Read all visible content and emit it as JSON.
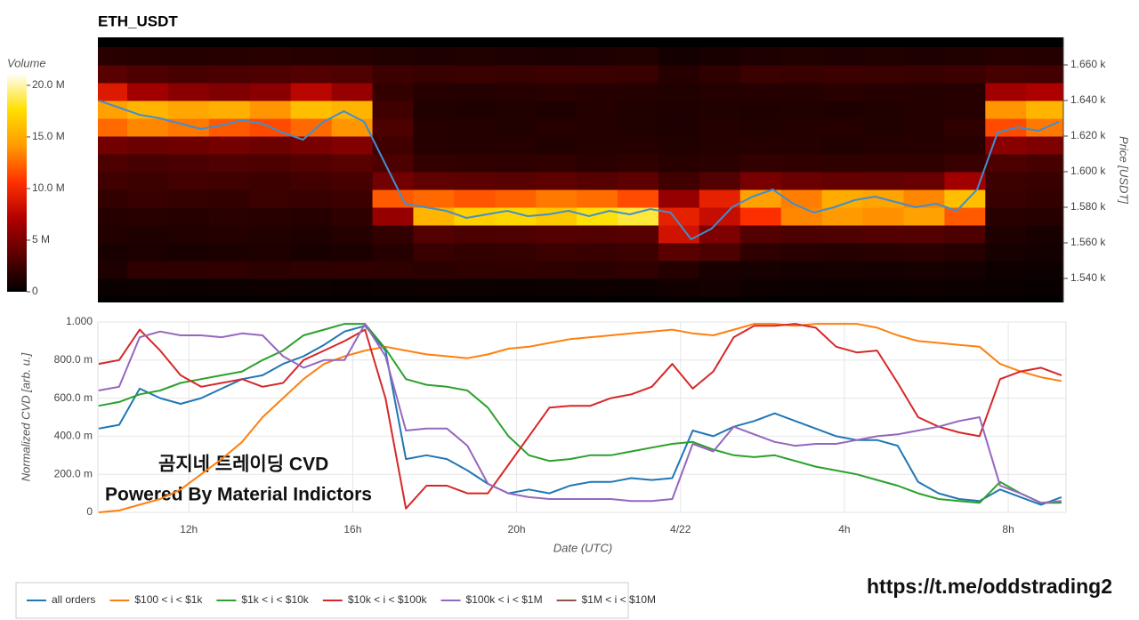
{
  "chart_data": [
    {
      "type": "heatmap",
      "title": "ETH_USDT",
      "ylabel": "Price [USDT]",
      "xlim": [
        9.78,
        33.41
      ],
      "ylim": [
        1526.5,
        1675.5
      ],
      "yticks": [
        {
          "value": 1540,
          "label": "1.540 k"
        },
        {
          "value": 1560,
          "label": "1.560 k"
        },
        {
          "value": 1580,
          "label": "1.580 k"
        },
        {
          "value": 1600,
          "label": "1.600 k"
        },
        {
          "value": 1620,
          "label": "1.620 k"
        },
        {
          "value": 1640,
          "label": "1.640 k"
        },
        {
          "value": 1660,
          "label": "1.660 k"
        }
      ],
      "x": [
        10,
        11,
        12,
        13,
        14,
        15,
        16,
        17,
        18,
        19,
        20,
        21,
        22,
        23,
        24,
        25,
        26,
        27,
        28,
        29,
        30,
        31,
        32,
        33
      ],
      "y": [
        1535,
        1545,
        1555,
        1565,
        1575,
        1585,
        1595,
        1605,
        1615,
        1625,
        1635,
        1645,
        1655,
        1665
      ],
      "z": [
        [
          0.4,
          0.5,
          0.4,
          0.5,
          0.6,
          0.5,
          0.4,
          0.5,
          0.6,
          0.5,
          0.4,
          0.5,
          0.6,
          0.5,
          0.7,
          0.8,
          0.6,
          0.5,
          0.4,
          0.5,
          0.6,
          0.5,
          0.4,
          0.3
        ],
        [
          1.2,
          1.8,
          1.8,
          1.9,
          1.7,
          1.8,
          1.9,
          1.8,
          1.7,
          1.8,
          1.9,
          1.8,
          1.7,
          1.9,
          1.4,
          1.0,
          0.9,
          0.8,
          0.9,
          0.8,
          0.9,
          0.8,
          0.6,
          0.5
        ],
        [
          1.0,
          1.1,
          1.0,
          1.1,
          1.2,
          1.0,
          1.1,
          1.5,
          2.2,
          2.0,
          2.1,
          2.3,
          2.2,
          2.4,
          3.5,
          3.0,
          1.8,
          1.6,
          1.5,
          1.6,
          1.7,
          1.5,
          0.9,
          0.8
        ],
        [
          1.3,
          1.2,
          1.3,
          1.4,
          1.3,
          1.2,
          1.4,
          2.0,
          3.2,
          3.0,
          3.1,
          3.3,
          3.2,
          3.4,
          8.5,
          5.0,
          3.2,
          3.0,
          3.1,
          3.3,
          3.2,
          3.0,
          1.2,
          1.0
        ],
        [
          1.5,
          1.6,
          1.5,
          1.7,
          1.6,
          1.5,
          1.8,
          6.0,
          15.5,
          16.8,
          17.2,
          16.5,
          17.8,
          18.5,
          9.5,
          8.0,
          10.5,
          13.5,
          14.2,
          13.8,
          14.5,
          12.0,
          1.6,
          1.5
        ],
        [
          2.0,
          2.2,
          2.1,
          2.0,
          2.3,
          2.2,
          2.4,
          12.0,
          12.5,
          11.8,
          12.2,
          13.0,
          12.6,
          11.5,
          6.0,
          9.5,
          14.5,
          13.2,
          15.0,
          14.6,
          13.5,
          16.0,
          2.2,
          2.0
        ],
        [
          2.5,
          2.4,
          2.6,
          2.5,
          2.4,
          2.6,
          2.8,
          4.5,
          3.8,
          3.6,
          3.5,
          3.7,
          3.4,
          3.6,
          2.5,
          3.2,
          4.8,
          4.2,
          4.0,
          3.9,
          4.1,
          6.5,
          2.4,
          2.2
        ],
        [
          3.0,
          2.8,
          2.9,
          3.1,
          3.0,
          3.2,
          3.5,
          3.0,
          2.0,
          1.9,
          1.8,
          1.9,
          1.7,
          1.8,
          1.6,
          1.7,
          2.0,
          1.9,
          1.8,
          1.9,
          1.8,
          2.2,
          3.0,
          2.8
        ],
        [
          4.5,
          4.2,
          4.4,
          4.6,
          4.3,
          4.8,
          5.2,
          2.5,
          1.5,
          1.4,
          1.5,
          1.3,
          1.4,
          1.5,
          1.3,
          1.4,
          1.5,
          1.4,
          1.3,
          1.4,
          1.5,
          1.6,
          5.5,
          5.0
        ],
        [
          12.5,
          13.5,
          13.0,
          12.0,
          11.5,
          12.5,
          14.0,
          3.0,
          1.5,
          1.4,
          1.3,
          1.5,
          1.4,
          1.3,
          1.2,
          1.4,
          1.3,
          1.4,
          1.5,
          1.3,
          1.4,
          1.8,
          11.5,
          13.0
        ],
        [
          14.5,
          15.5,
          14.8,
          15.2,
          14.0,
          16.0,
          15.5,
          2.5,
          1.3,
          1.2,
          1.3,
          1.2,
          1.4,
          1.3,
          1.2,
          1.3,
          1.2,
          1.3,
          1.2,
          1.3,
          1.4,
          1.5,
          14.0,
          15.5
        ],
        [
          9.0,
          6.5,
          5.5,
          5.0,
          5.5,
          7.5,
          6.0,
          2.0,
          1.5,
          1.4,
          1.5,
          1.6,
          1.5,
          1.4,
          1.3,
          1.4,
          1.5,
          1.4,
          1.6,
          1.5,
          1.4,
          1.5,
          6.5,
          7.0
        ],
        [
          3.5,
          3.0,
          2.8,
          2.9,
          3.0,
          3.2,
          3.1,
          2.4,
          2.2,
          2.3,
          2.2,
          2.4,
          2.3,
          2.2,
          1.5,
          1.8,
          2.3,
          2.2,
          2.4,
          2.3,
          2.2,
          2.4,
          2.8,
          2.6
        ],
        [
          1.6,
          1.5,
          1.4,
          1.5,
          1.6,
          1.5,
          1.4,
          1.3,
          1.2,
          1.3,
          1.2,
          1.1,
          1.2,
          1.3,
          0.8,
          1.0,
          1.2,
          1.3,
          1.2,
          1.3,
          1.2,
          1.3,
          1.5,
          1.4
        ]
      ],
      "colormap": [
        "#000000",
        "#5a0000",
        "#b00000",
        "#ff3000",
        "#ff9a00",
        "#ffe000",
        "#ffffff"
      ],
      "colorbar": {
        "title": "Volume",
        "lim": [
          0,
          21.2
        ],
        "ticks": [
          0,
          {
            "value": 5,
            "label": "5 M"
          },
          {
            "value": 10,
            "label": "10.0 M"
          },
          {
            "value": 15,
            "label": "15.0 M"
          },
          {
            "value": 20,
            "label": "20.0 M"
          }
        ]
      },
      "line": {
        "color": "#3f8fcf",
        "x": [
          9.8,
          10.3,
          10.8,
          11.3,
          11.8,
          12.3,
          12.8,
          13.3,
          13.8,
          14.3,
          14.8,
          15.3,
          15.8,
          16.3,
          16.8,
          17.3,
          17.8,
          18.3,
          18.8,
          19.3,
          19.8,
          20.3,
          20.8,
          21.3,
          21.8,
          22.3,
          22.8,
          23.3,
          23.8,
          24.3,
          24.8,
          25.3,
          25.8,
          26.3,
          26.8,
          27.3,
          27.8,
          28.3,
          28.8,
          29.3,
          29.8,
          30.3,
          30.8,
          31.3,
          31.8,
          32.3,
          32.8,
          33.3
        ],
        "values": [
          1640,
          1636,
          1632,
          1630,
          1627,
          1624,
          1626,
          1629,
          1627,
          1622,
          1618,
          1628,
          1634,
          1628,
          1605,
          1582,
          1580,
          1578,
          1574,
          1576,
          1578,
          1575,
          1576,
          1578,
          1575,
          1578,
          1576,
          1579,
          1577,
          1562,
          1568,
          1580,
          1586,
          1590,
          1582,
          1577,
          1580,
          1584,
          1586,
          1583,
          1580,
          1582,
          1578,
          1590,
          1622,
          1625,
          1623,
          1628
        ]
      }
    },
    {
      "type": "line",
      "xlabel": "Date (UTC)",
      "ylabel": "Normalized CVD [arb. u.]",
      "grid": true,
      "xlim": [
        9.78,
        33.41
      ],
      "ylim": [
        0,
        1
      ],
      "xticks": [
        {
          "value": 12,
          "label": "12h"
        },
        {
          "value": 16,
          "label": "16h"
        },
        {
          "value": 20,
          "label": "20h"
        },
        {
          "value": 24,
          "label": "4/22"
        },
        {
          "value": 28,
          "label": "4h"
        },
        {
          "value": 32,
          "label": "8h"
        }
      ],
      "yticks": [
        0,
        {
          "value": 0.2,
          "label": "200.0 m"
        },
        {
          "value": 0.4,
          "label": "400.0 m"
        },
        {
          "value": 0.6,
          "label": "600.0 m"
        },
        {
          "value": 0.8,
          "label": "800.0 m"
        },
        {
          "value": 1,
          "label": "1.000"
        }
      ],
      "x": [
        9.8,
        10.3,
        10.8,
        11.3,
        11.8,
        12.3,
        12.8,
        13.3,
        13.8,
        14.3,
        14.8,
        15.3,
        15.8,
        16.3,
        16.8,
        17.3,
        17.8,
        18.3,
        18.8,
        19.3,
        19.8,
        20.3,
        20.8,
        21.3,
        21.8,
        22.3,
        22.8,
        23.3,
        23.8,
        24.3,
        24.8,
        25.3,
        25.8,
        26.3,
        26.8,
        27.3,
        27.8,
        28.3,
        28.8,
        29.3,
        29.8,
        30.3,
        30.8,
        31.3,
        31.8,
        32.3,
        32.8,
        33.3
      ],
      "series": [
        {
          "name": "all orders",
          "color": "#1f77b4",
          "values": [
            0.44,
            0.46,
            0.65,
            0.6,
            0.57,
            0.6,
            0.65,
            0.7,
            0.72,
            0.78,
            0.82,
            0.88,
            0.95,
            0.98,
            0.85,
            0.28,
            0.3,
            0.28,
            0.22,
            0.15,
            0.1,
            0.12,
            0.1,
            0.14,
            0.16,
            0.16,
            0.18,
            0.17,
            0.18,
            0.43,
            0.4,
            0.45,
            0.48,
            0.52,
            0.48,
            0.44,
            0.4,
            0.38,
            0.38,
            0.35,
            0.16,
            0.1,
            0.07,
            0.06,
            0.12,
            0.08,
            0.04,
            0.08
          ]
        },
        {
          "name": "$100 < i < $1k",
          "color": "#ff7f0e",
          "values": [
            0,
            0.01,
            0.04,
            0.07,
            0.12,
            0.2,
            0.28,
            0.37,
            0.5,
            0.6,
            0.7,
            0.78,
            0.82,
            0.85,
            0.87,
            0.85,
            0.83,
            0.82,
            0.81,
            0.83,
            0.86,
            0.87,
            0.89,
            0.91,
            0.92,
            0.93,
            0.94,
            0.95,
            0.96,
            0.94,
            0.93,
            0.96,
            0.99,
            0.99,
            0.98,
            0.99,
            0.99,
            0.99,
            0.97,
            0.93,
            0.9,
            0.89,
            0.88,
            0.87,
            0.78,
            0.74,
            0.71,
            0.69
          ]
        },
        {
          "name": "$1k < i < $10k",
          "color": "#2ca02c",
          "values": [
            0.56,
            0.58,
            0.62,
            0.64,
            0.68,
            0.7,
            0.72,
            0.74,
            0.8,
            0.85,
            0.93,
            0.96,
            0.99,
            0.99,
            0.86,
            0.7,
            0.67,
            0.66,
            0.64,
            0.55,
            0.4,
            0.3,
            0.27,
            0.28,
            0.3,
            0.3,
            0.32,
            0.34,
            0.36,
            0.37,
            0.33,
            0.3,
            0.29,
            0.3,
            0.27,
            0.24,
            0.22,
            0.2,
            0.17,
            0.14,
            0.1,
            0.07,
            0.06,
            0.05,
            0.16,
            0.1,
            0.05,
            0.05
          ]
        },
        {
          "name": "$10k < i < $100k",
          "color": "#d62728",
          "values": [
            0.78,
            0.8,
            0.96,
            0.85,
            0.72,
            0.66,
            0.68,
            0.7,
            0.66,
            0.68,
            0.8,
            0.85,
            0.9,
            0.96,
            0.6,
            0.02,
            0.14,
            0.14,
            0.1,
            0.1,
            0.25,
            0.4,
            0.55,
            0.56,
            0.56,
            0.6,
            0.62,
            0.66,
            0.78,
            0.65,
            0.74,
            0.92,
            0.98,
            0.98,
            0.99,
            0.97,
            0.87,
            0.84,
            0.85,
            0.68,
            0.5,
            0.45,
            0.42,
            0.4,
            0.7,
            0.74,
            0.76,
            0.72
          ]
        },
        {
          "name": "$100k < i < $1M",
          "color": "#9467bd",
          "values": [
            0.64,
            0.66,
            0.92,
            0.95,
            0.93,
            0.93,
            0.92,
            0.94,
            0.93,
            0.82,
            0.76,
            0.8,
            0.8,
            0.99,
            0.82,
            0.43,
            0.44,
            0.44,
            0.35,
            0.15,
            0.1,
            0.08,
            0.07,
            0.07,
            0.07,
            0.07,
            0.06,
            0.06,
            0.07,
            0.36,
            0.32,
            0.45,
            0.41,
            0.37,
            0.35,
            0.36,
            0.36,
            0.38,
            0.4,
            0.41,
            0.43,
            0.45,
            0.48,
            0.5,
            0.14,
            0.1,
            0.05,
            0.06
          ]
        },
        {
          "name": "$1M < i < $10M",
          "color": "#8c564b",
          "values": [
            null,
            null,
            null,
            null,
            null,
            null,
            null,
            null,
            null,
            null,
            null,
            null,
            null,
            null,
            null,
            null,
            null,
            null,
            null,
            null,
            null,
            null,
            null,
            null,
            null,
            null,
            null,
            null,
            null,
            null,
            null,
            null,
            null,
            null,
            null,
            null,
            null,
            null,
            null,
            null,
            null,
            null,
            null,
            null,
            null,
            null,
            null,
            null
          ]
        }
      ],
      "annotations": [
        "곰지네 트레이딩 CVD",
        "Powered By Material Indictors"
      ]
    }
  ],
  "link": "https://t.me/oddstrading2"
}
